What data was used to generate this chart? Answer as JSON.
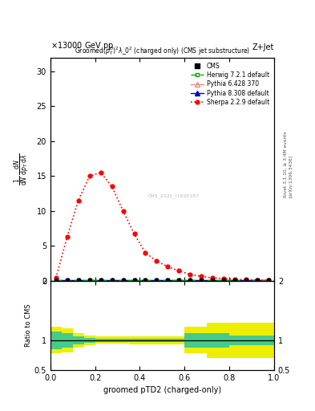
{
  "energy_label": "13000 GeV pp",
  "right_label": "Z+Jet",
  "plot_title": "Groomed$(p_T^D)^2\\lambda_0^2$ (charged only) (CMS jet substructure)",
  "xlabel": "groomed pTD2 (charged-only)",
  "ylabel_main": "$\\frac{1}{\\mathrm{mathrm}\\,d N}\\,\\mathrm{mathrm}\\,d N / \\mathrm{mathrm}\\,d p_T\\,\\mathrm{mathrm}\\,d \\lambda$",
  "ylabel_ratio": "Ratio to CMS",
  "right_side_text": "Rivet 3.1.10, ≥ 3.4M events",
  "arxiv_text": "[arXiv:1306.3436]",
  "watermark": "CMS_2021_I1920187",
  "ylim_main": [
    0,
    32
  ],
  "ylim_ratio": [
    0.5,
    2.0
  ],
  "xlim": [
    0.0,
    1.0
  ],
  "yticks_main": [
    0,
    5,
    10,
    15,
    20,
    25,
    30
  ],
  "yticks_ratio_left": [
    0.5,
    1.0,
    2.0
  ],
  "yticks_ratio_right": [
    0.5,
    1.0,
    2.0
  ],
  "sherpa_x": [
    0.025,
    0.075,
    0.125,
    0.175,
    0.225,
    0.275,
    0.325,
    0.375,
    0.425,
    0.475,
    0.525,
    0.575,
    0.625,
    0.675,
    0.725,
    0.775,
    0.825,
    0.875,
    0.925,
    0.975
  ],
  "sherpa_y": [
    0.4,
    6.3,
    11.5,
    15.0,
    15.5,
    13.5,
    10.0,
    6.7,
    4.0,
    2.8,
    2.0,
    1.4,
    0.9,
    0.6,
    0.4,
    0.3,
    0.2,
    0.15,
    0.1,
    0.05
  ],
  "cms_x": [
    0.025,
    0.075,
    0.125,
    0.175,
    0.225,
    0.275,
    0.325,
    0.375,
    0.425,
    0.475,
    0.525,
    0.575,
    0.625,
    0.675,
    0.725,
    0.775,
    0.825,
    0.875,
    0.925,
    0.975
  ],
  "cms_y": [
    0.05,
    0.05,
    0.05,
    0.05,
    0.05,
    0.05,
    0.05,
    0.05,
    0.05,
    0.05,
    0.05,
    0.05,
    0.05,
    0.05,
    0.05,
    0.05,
    0.05,
    0.05,
    0.05,
    0.05
  ],
  "herwig_x": [
    0.025,
    0.075,
    0.125,
    0.175,
    0.225,
    0.275,
    0.325,
    0.375,
    0.425,
    0.475,
    0.525,
    0.575,
    0.625,
    0.675,
    0.725,
    0.775,
    0.825,
    0.875,
    0.925,
    0.975
  ],
  "herwig_y": [
    0.05,
    0.05,
    0.05,
    0.05,
    0.05,
    0.05,
    0.05,
    0.05,
    0.05,
    0.05,
    0.05,
    0.05,
    0.05,
    0.05,
    0.05,
    0.05,
    0.05,
    0.05,
    0.05,
    0.05
  ],
  "pythia6_x": [
    0.025,
    0.075,
    0.125,
    0.175,
    0.225,
    0.275,
    0.325,
    0.375,
    0.425,
    0.475,
    0.525,
    0.575,
    0.625,
    0.675,
    0.725,
    0.775,
    0.825,
    0.875,
    0.925,
    0.975
  ],
  "pythia6_y": [
    0.05,
    0.05,
    0.05,
    0.05,
    0.05,
    0.05,
    0.05,
    0.05,
    0.05,
    0.05,
    0.05,
    0.05,
    0.05,
    0.05,
    0.05,
    0.05,
    0.05,
    0.05,
    0.05,
    0.05
  ],
  "pythia8_x": [
    0.025,
    0.075,
    0.125,
    0.175,
    0.225,
    0.275,
    0.325,
    0.375,
    0.425,
    0.475,
    0.525,
    0.575,
    0.625,
    0.675,
    0.725,
    0.775,
    0.825,
    0.875,
    0.925,
    0.975
  ],
  "pythia8_y": [
    0.05,
    0.05,
    0.05,
    0.05,
    0.05,
    0.05,
    0.05,
    0.05,
    0.05,
    0.05,
    0.05,
    0.05,
    0.05,
    0.05,
    0.05,
    0.05,
    0.05,
    0.05,
    0.05,
    0.05
  ],
  "bin_edges": [
    0.0,
    0.05,
    0.1,
    0.15,
    0.2,
    0.25,
    0.3,
    0.35,
    0.4,
    0.45,
    0.5,
    0.55,
    0.6,
    0.65,
    0.7,
    0.75,
    0.8,
    0.85,
    0.9,
    0.95,
    1.0
  ],
  "ratio_green_lo": [
    0.85,
    0.88,
    0.93,
    0.96,
    0.97,
    0.97,
    0.97,
    0.97,
    0.97,
    0.97,
    0.97,
    0.97,
    0.88,
    0.88,
    0.88,
    0.88,
    0.92,
    0.92,
    0.92,
    0.92
  ],
  "ratio_green_hi": [
    1.15,
    1.12,
    1.07,
    1.04,
    1.03,
    1.03,
    1.03,
    1.03,
    1.03,
    1.03,
    1.03,
    1.03,
    1.12,
    1.12,
    1.12,
    1.12,
    1.08,
    1.08,
    1.08,
    1.08
  ],
  "ratio_yellow_lo": [
    0.78,
    0.8,
    0.88,
    0.92,
    0.94,
    0.94,
    0.94,
    0.93,
    0.93,
    0.93,
    0.93,
    0.93,
    0.78,
    0.78,
    0.7,
    0.7,
    0.7,
    0.7,
    0.7,
    0.7
  ],
  "ratio_yellow_hi": [
    1.22,
    1.2,
    1.12,
    1.08,
    1.06,
    1.06,
    1.06,
    1.07,
    1.07,
    1.07,
    1.07,
    1.07,
    1.22,
    1.22,
    1.3,
    1.3,
    1.3,
    1.3,
    1.3,
    1.3
  ],
  "color_cms": "#000000",
  "color_herwig": "#00aa00",
  "color_pythia6": "#ee8888",
  "color_pythia8": "#0000cc",
  "color_sherpa": "#ff0000",
  "color_green_band": "#44cc88",
  "color_yellow_band": "#eeee00",
  "bg_color": "#ffffff"
}
